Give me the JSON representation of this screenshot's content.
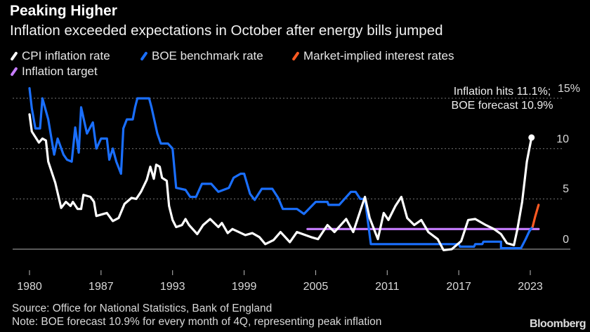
{
  "header": {
    "title": "Peaking Higher",
    "subtitle": "Inflation exceeded expectations in October after energy bills jumped"
  },
  "legend": [
    {
      "label": "CPI inflation rate",
      "color": "#ffffff"
    },
    {
      "label": "BOE benchmark rate",
      "color": "#1a6fff"
    },
    {
      "label": "Market-implied interest rates",
      "color": "#ff5a22"
    },
    {
      "label": "Inflation target",
      "color": "#c77dff"
    }
  ],
  "annotation": "Inflation hits 11.1%; BOE forecast 10.9%",
  "footer": {
    "source": "Source: Office for National Statistics, Bank of England",
    "note": "Note: BOE forecast 10.9% for every month of 4Q, representing peak inflation",
    "logo": "Bloomberg"
  },
  "chart_data": {
    "type": "line",
    "title": "Peaking Higher",
    "subtitle": "Inflation exceeded expectations in October after energy bills jumped",
    "x_tick_labels": [
      "1980",
      "1987",
      "1993",
      "1999",
      "2005",
      "2011",
      "2017",
      "2023"
    ],
    "y_ticks": [
      {
        "value": 0,
        "label": "0"
      },
      {
        "value": 5,
        "label": "5"
      },
      {
        "value": 10,
        "label": "10"
      },
      {
        "value": 15,
        "label": "15%"
      }
    ],
    "xlim": [
      1980,
      2023.5
    ],
    "ylim": [
      -1,
      16
    ],
    "grid": "horizontal dotted",
    "legend_position": "top-left",
    "series": [
      {
        "name": "CPI inflation rate",
        "color": "#ffffff",
        "points": [
          [
            1980.0,
            13.4
          ],
          [
            1980.2,
            11.7
          ],
          [
            1980.8,
            10.6
          ],
          [
            1981.1,
            11.0
          ],
          [
            1981.4,
            10.8
          ],
          [
            1981.6,
            8.7
          ],
          [
            1982.2,
            6.6
          ],
          [
            1982.7,
            4.1
          ],
          [
            1983.1,
            4.7
          ],
          [
            1983.5,
            4.3
          ],
          [
            1983.7,
            4.7
          ],
          [
            1984.1,
            4.0
          ],
          [
            1984.4,
            4.0
          ],
          [
            1984.6,
            5.4
          ],
          [
            1985.2,
            5.2
          ],
          [
            1985.5,
            4.7
          ],
          [
            1985.7,
            3.3
          ],
          [
            1986.3,
            3.5
          ],
          [
            1986.6,
            3.6
          ],
          [
            1987.1,
            2.8
          ],
          [
            1987.6,
            3.1
          ],
          [
            1988.1,
            4.5
          ],
          [
            1988.7,
            5.1
          ],
          [
            1989.1,
            5.0
          ],
          [
            1989.5,
            5.7
          ],
          [
            1990.0,
            6.9
          ],
          [
            1990.3,
            8.2
          ],
          [
            1990.6,
            7.0
          ],
          [
            1990.8,
            8.4
          ],
          [
            1991.1,
            8.2
          ],
          [
            1991.3,
            7.1
          ],
          [
            1991.7,
            6.8
          ],
          [
            1991.9,
            4.3
          ],
          [
            1992.2,
            2.9
          ],
          [
            1992.5,
            2.2
          ],
          [
            1993.0,
            2.4
          ],
          [
            1993.3,
            3.0
          ],
          [
            1993.6,
            2.4
          ],
          [
            1994.3,
            1.5
          ],
          [
            1994.8,
            2.4
          ],
          [
            1995.4,
            3.0
          ],
          [
            1996.1,
            2.2
          ],
          [
            1996.4,
            2.6
          ],
          [
            1996.9,
            1.6
          ],
          [
            1997.3,
            2.0
          ],
          [
            1998.4,
            1.4
          ],
          [
            1999.0,
            1.6
          ],
          [
            1999.6,
            1.2
          ],
          [
            2000.1,
            0.5
          ],
          [
            2000.8,
            0.9
          ],
          [
            2001.4,
            1.7
          ],
          [
            2002.2,
            0.7
          ],
          [
            2002.8,
            1.7
          ],
          [
            2004.0,
            1.2
          ],
          [
            2004.6,
            1.0
          ],
          [
            2005.4,
            2.4
          ],
          [
            2006.0,
            1.7
          ],
          [
            2007.0,
            3.0
          ],
          [
            2007.6,
            1.7
          ],
          [
            2008.6,
            5.2
          ],
          [
            2009.0,
            3.1
          ],
          [
            2009.7,
            1.0
          ],
          [
            2010.2,
            3.6
          ],
          [
            2010.6,
            2.9
          ],
          [
            2011.2,
            4.3
          ],
          [
            2011.7,
            5.2
          ],
          [
            2012.2,
            3.1
          ],
          [
            2012.8,
            2.4
          ],
          [
            2013.4,
            2.9
          ],
          [
            2014.0,
            1.7
          ],
          [
            2014.8,
            1.0
          ],
          [
            2015.3,
            -0.1
          ],
          [
            2016.0,
            0.0
          ],
          [
            2016.8,
            0.8
          ],
          [
            2017.4,
            2.9
          ],
          [
            2018.0,
            3.0
          ],
          [
            2018.9,
            2.4
          ],
          [
            2019.6,
            2.0
          ],
          [
            2020.2,
            1.5
          ],
          [
            2020.7,
            0.6
          ],
          [
            2021.3,
            0.4
          ],
          [
            2021.6,
            2.0
          ],
          [
            2022.0,
            4.7
          ],
          [
            2022.4,
            8.7
          ],
          [
            2022.6,
            9.9
          ],
          [
            2022.8,
            11.1
          ]
        ]
      },
      {
        "name": "BOE benchmark rate",
        "color": "#1a6fff",
        "points": [
          [
            1980.0,
            16.0
          ],
          [
            1980.2,
            14.0
          ],
          [
            1980.5,
            12.0
          ],
          [
            1980.9,
            12.0
          ],
          [
            1981.1,
            15.0
          ],
          [
            1981.6,
            12.9
          ],
          [
            1982.1,
            9.4
          ],
          [
            1982.4,
            11.0
          ],
          [
            1982.9,
            9.4
          ],
          [
            1983.2,
            8.9
          ],
          [
            1983.6,
            8.7
          ],
          [
            1983.9,
            12.1
          ],
          [
            1984.2,
            9.6
          ],
          [
            1984.4,
            14.1
          ],
          [
            1984.9,
            11.5
          ],
          [
            1985.4,
            12.6
          ],
          [
            1985.7,
            10.0
          ],
          [
            1986.1,
            11.0
          ],
          [
            1986.6,
            11.0
          ],
          [
            1986.8,
            8.9
          ],
          [
            1987.1,
            10.0
          ],
          [
            1987.4,
            8.7
          ],
          [
            1987.8,
            7.5
          ],
          [
            1988.0,
            12.0
          ],
          [
            1988.3,
            12.9
          ],
          [
            1988.8,
            12.9
          ],
          [
            1989.0,
            14.1
          ],
          [
            1989.2,
            15.0
          ],
          [
            1990.2,
            15.0
          ],
          [
            1990.4,
            14.1
          ],
          [
            1990.9,
            11.5
          ],
          [
            1991.2,
            10.5
          ],
          [
            1991.8,
            10.5
          ],
          [
            1992.2,
            10.0
          ],
          [
            1992.5,
            6.1
          ],
          [
            1993.3,
            5.9
          ],
          [
            1993.7,
            5.2
          ],
          [
            1994.2,
            5.2
          ],
          [
            1994.7,
            6.5
          ],
          [
            1995.5,
            6.5
          ],
          [
            1996.1,
            5.7
          ],
          [
            1997.0,
            6.1
          ],
          [
            1997.4,
            7.1
          ],
          [
            1998.0,
            7.5
          ],
          [
            1998.3,
            7.5
          ],
          [
            1998.8,
            5.5
          ],
          [
            1999.2,
            4.9
          ],
          [
            1999.8,
            6.0
          ],
          [
            2000.7,
            6.0
          ],
          [
            2001.2,
            5.1
          ],
          [
            2001.6,
            4.0
          ],
          [
            2002.8,
            4.0
          ],
          [
            2003.4,
            3.5
          ],
          [
            2004.4,
            4.7
          ],
          [
            2005.4,
            4.7
          ],
          [
            2005.5,
            4.4
          ],
          [
            2006.4,
            4.4
          ],
          [
            2007.4,
            5.7
          ],
          [
            2007.8,
            5.7
          ],
          [
            2008.2,
            5.0
          ],
          [
            2008.6,
            5.0
          ],
          [
            2009.1,
            0.5
          ],
          [
            2016.6,
            0.5
          ],
          [
            2016.7,
            0.25
          ],
          [
            2017.9,
            0.25
          ],
          [
            2018.0,
            0.5
          ],
          [
            2018.6,
            0.5
          ],
          [
            2018.7,
            0.75
          ],
          [
            2020.2,
            0.75
          ],
          [
            2020.2,
            0.1
          ],
          [
            2021.9,
            0.1
          ],
          [
            2022.3,
            1.0
          ],
          [
            2022.6,
            1.75
          ],
          [
            2022.9,
            2.25
          ]
        ]
      },
      {
        "name": "Market-implied interest rates",
        "color": "#ff5a22",
        "points": [
          [
            2022.9,
            2.25
          ],
          [
            2023.1,
            3.2
          ],
          [
            2023.4,
            4.4
          ]
        ]
      },
      {
        "name": "Inflation target",
        "color": "#c77dff",
        "points": [
          [
            2003.7,
            2.0
          ],
          [
            2023.4,
            2.0
          ]
        ]
      }
    ],
    "annotations": [
      {
        "text": "Inflation hits 11.1%; BOE forecast 10.9%",
        "x": 2022.8,
        "y": 11.1
      }
    ]
  }
}
